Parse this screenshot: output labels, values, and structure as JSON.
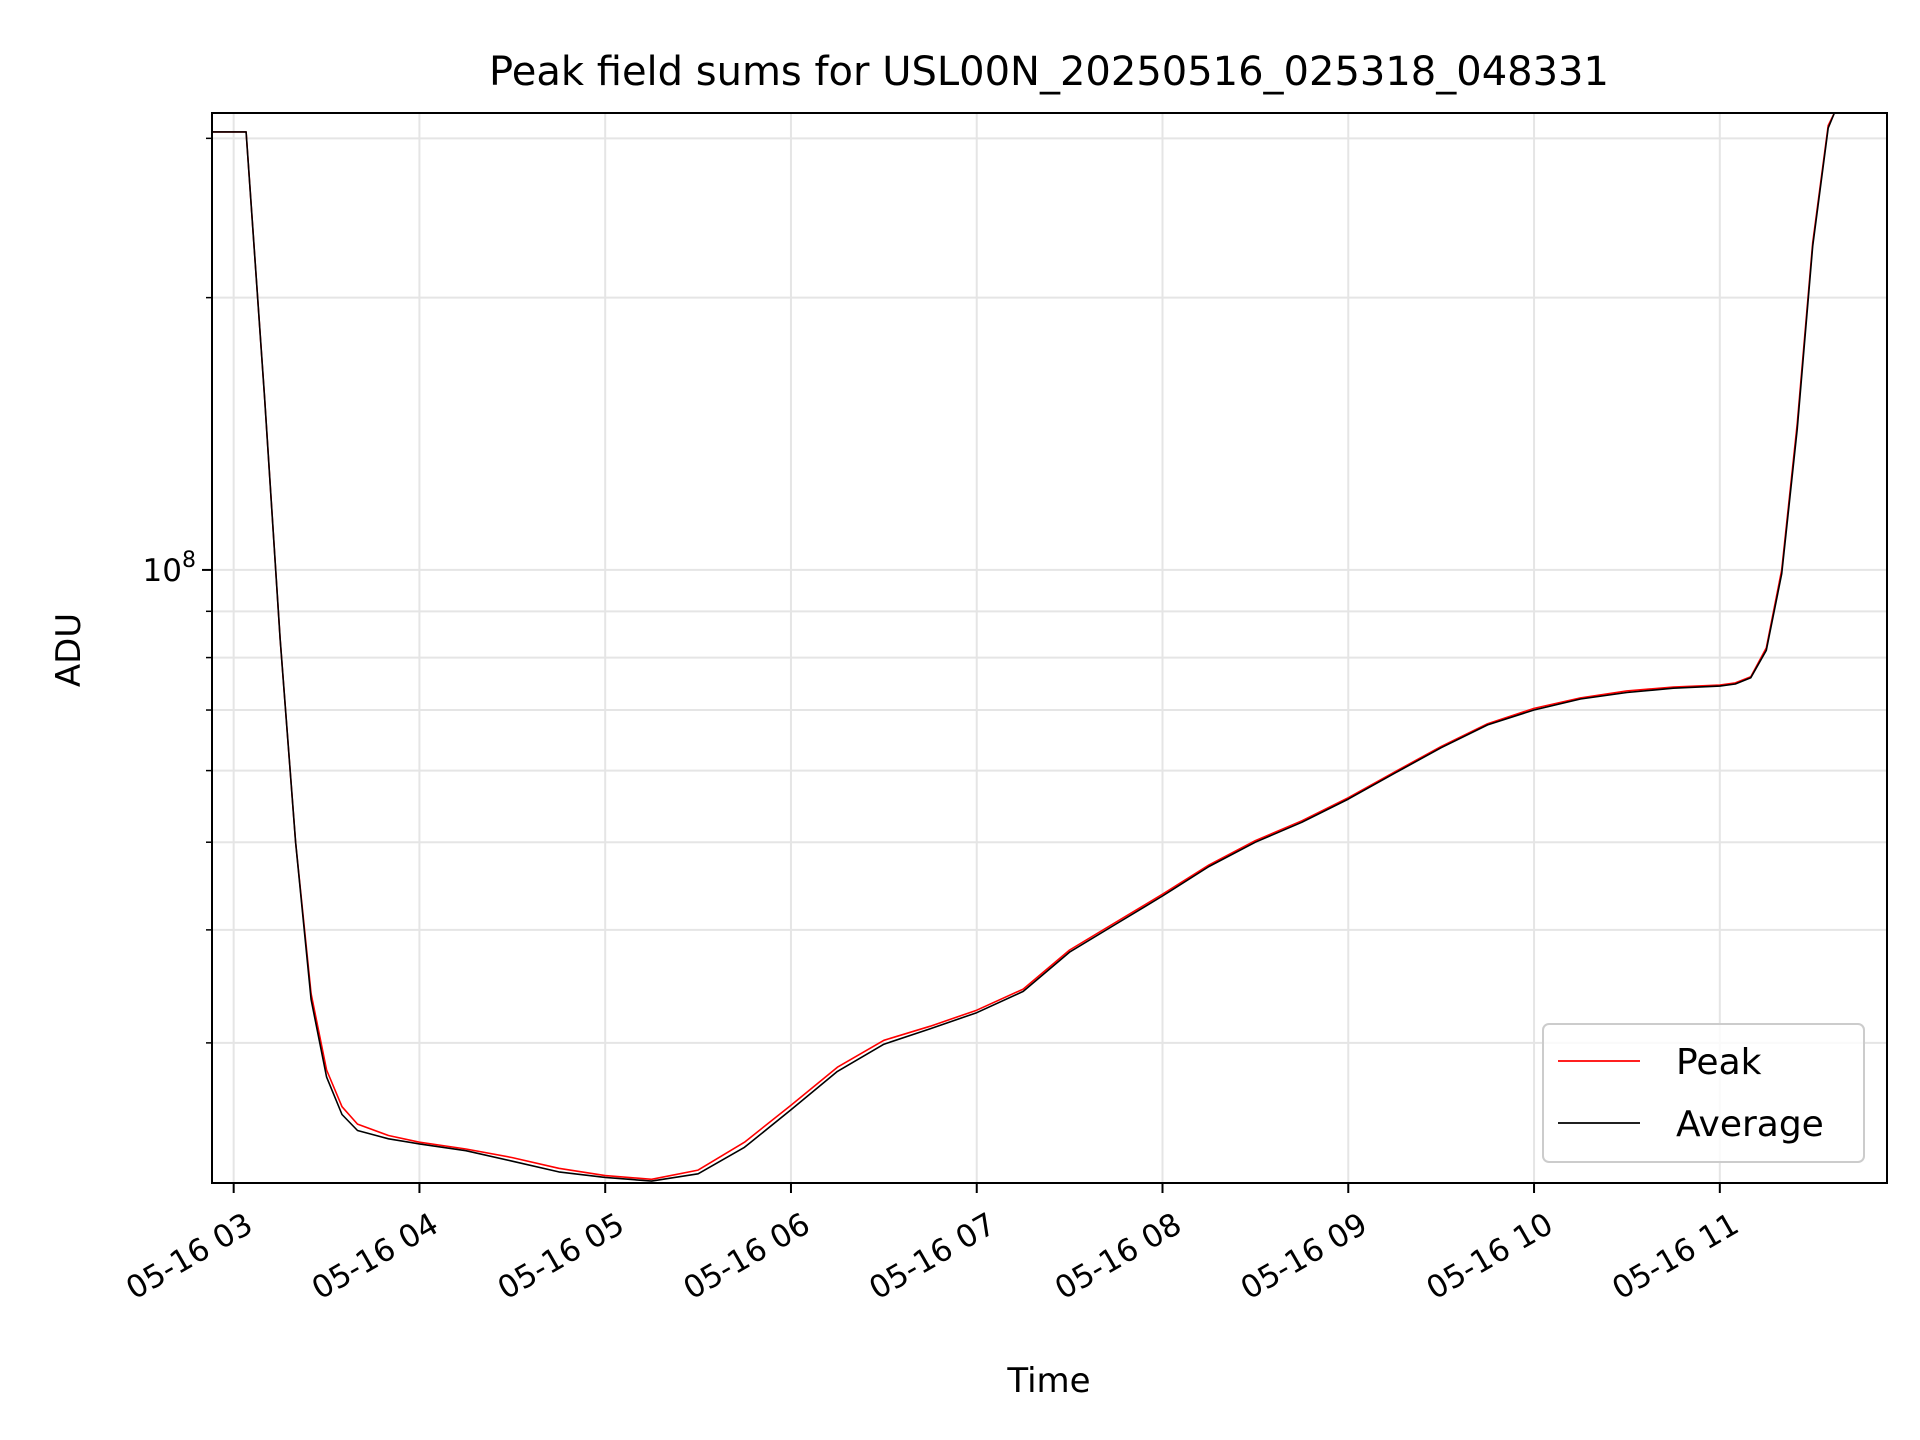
{
  "chart_data": {
    "type": "line",
    "title": "Peak field sums for USL00N_20250516_025318_048331",
    "xlabel": "Time",
    "ylabel": "ADU",
    "y_scale": "log",
    "ylim": [
      21000000.0,
      320000000.0
    ],
    "xlim": [
      "2025-05-16 02:53",
      "2025-05-16 11:54"
    ],
    "grid": true,
    "legend_position": "lower right",
    "x_ticks": [
      "05-16 03",
      "05-16 04",
      "05-16 05",
      "05-16 06",
      "05-16 07",
      "05-16 08",
      "05-16 09",
      "05-16 10",
      "05-16 11"
    ],
    "x_tick_times": [
      "2025-05-16 03:00",
      "2025-05-16 04:00",
      "2025-05-16 05:00",
      "2025-05-16 06:00",
      "2025-05-16 07:00",
      "2025-05-16 08:00",
      "2025-05-16 09:00",
      "2025-05-16 10:00",
      "2025-05-16 11:00"
    ],
    "y_tick_major": {
      "base": "10",
      "exponent": "8",
      "value": 100000000.0
    },
    "series": [
      {
        "name": "Peak",
        "color": "#ff0000",
        "points": [
          [
            "2025-05-16 02:53",
            305000000.0
          ],
          [
            "2025-05-16 03:00",
            305000000.0
          ],
          [
            "2025-05-16 03:04",
            305000000.0
          ],
          [
            "2025-05-16 03:10",
            155000000.0
          ],
          [
            "2025-05-16 03:15",
            84000000.0
          ],
          [
            "2025-05-16 03:20",
            50000000.0
          ],
          [
            "2025-05-16 03:25",
            34000000.0
          ],
          [
            "2025-05-16 03:30",
            28000000.0
          ],
          [
            "2025-05-16 03:35",
            25500000.0
          ],
          [
            "2025-05-16 03:40",
            24400000.0
          ],
          [
            "2025-05-16 03:50",
            23700000.0
          ],
          [
            "2025-05-16 04:00",
            23300000.0
          ],
          [
            "2025-05-16 04:15",
            22900000.0
          ],
          [
            "2025-05-16 04:30",
            22400000.0
          ],
          [
            "2025-05-16 04:45",
            21800000.0
          ],
          [
            "2025-05-16 05:00",
            21400000.0
          ],
          [
            "2025-05-16 05:15",
            21200000.0
          ],
          [
            "2025-05-16 05:30",
            21700000.0
          ],
          [
            "2025-05-16 05:45",
            23300000.0
          ],
          [
            "2025-05-16 06:00",
            25600000.0
          ],
          [
            "2025-05-16 06:15",
            28200000.0
          ],
          [
            "2025-05-16 06:30",
            30200000.0
          ],
          [
            "2025-05-16 06:45",
            31300000.0
          ],
          [
            "2025-05-16 07:00",
            32600000.0
          ],
          [
            "2025-05-16 07:15",
            34400000.0
          ],
          [
            "2025-05-16 07:30",
            38000000.0
          ],
          [
            "2025-05-16 07:45",
            40800000.0
          ],
          [
            "2025-05-16 08:00",
            43800000.0
          ],
          [
            "2025-05-16 08:15",
            47200000.0
          ],
          [
            "2025-05-16 08:30",
            50200000.0
          ],
          [
            "2025-05-16 08:45",
            52800000.0
          ],
          [
            "2025-05-16 09:00",
            56000000.0
          ],
          [
            "2025-05-16 09:15",
            59800000.0
          ],
          [
            "2025-05-16 09:30",
            63800000.0
          ],
          [
            "2025-05-16 09:45",
            67600000.0
          ],
          [
            "2025-05-16 10:00",
            70300000.0
          ],
          [
            "2025-05-16 10:15",
            72200000.0
          ],
          [
            "2025-05-16 10:30",
            73500000.0
          ],
          [
            "2025-05-16 10:45",
            74200000.0
          ],
          [
            "2025-05-16 11:00",
            74600000.0
          ],
          [
            "2025-05-16 11:05",
            75000000.0
          ],
          [
            "2025-05-16 11:10",
            76200000.0
          ],
          [
            "2025-05-16 11:15",
            82000000.0
          ],
          [
            "2025-05-16 11:20",
            100000000.0
          ],
          [
            "2025-05-16 11:25",
            145000000.0
          ],
          [
            "2025-05-16 11:30",
            230000000.0
          ],
          [
            "2025-05-16 11:35",
            310000000.0
          ],
          [
            "2025-05-16 11:37",
            320000000.0
          ]
        ]
      },
      {
        "name": "Average",
        "color": "#000000",
        "points": [
          [
            "2025-05-16 02:53",
            305000000.0
          ],
          [
            "2025-05-16 03:00",
            305000000.0
          ],
          [
            "2025-05-16 03:04",
            305000000.0
          ],
          [
            "2025-05-16 03:10",
            155000000.0
          ],
          [
            "2025-05-16 03:15",
            84000000.0
          ],
          [
            "2025-05-16 03:20",
            50000000.0
          ],
          [
            "2025-05-16 03:25",
            33500000.0
          ],
          [
            "2025-05-16 03:30",
            27500000.0
          ],
          [
            "2025-05-16 03:35",
            25000000.0
          ],
          [
            "2025-05-16 03:40",
            24000000.0
          ],
          [
            "2025-05-16 03:50",
            23500000.0
          ],
          [
            "2025-05-16 04:00",
            23200000.0
          ],
          [
            "2025-05-16 04:15",
            22800000.0
          ],
          [
            "2025-05-16 04:30",
            22200000.0
          ],
          [
            "2025-05-16 04:45",
            21600000.0
          ],
          [
            "2025-05-16 05:00",
            21300000.0
          ],
          [
            "2025-05-16 05:15",
            21100000.0
          ],
          [
            "2025-05-16 05:30",
            21500000.0
          ],
          [
            "2025-05-16 05:45",
            23000000.0
          ],
          [
            "2025-05-16 06:00",
            25300000.0
          ],
          [
            "2025-05-16 06:15",
            27900000.0
          ],
          [
            "2025-05-16 06:30",
            29900000.0
          ],
          [
            "2025-05-16 06:45",
            31100000.0
          ],
          [
            "2025-05-16 07:00",
            32400000.0
          ],
          [
            "2025-05-16 07:15",
            34200000.0
          ],
          [
            "2025-05-16 07:30",
            37800000.0
          ],
          [
            "2025-05-16 07:45",
            40600000.0
          ],
          [
            "2025-05-16 08:00",
            43600000.0
          ],
          [
            "2025-05-16 08:15",
            47000000.0
          ],
          [
            "2025-05-16 08:30",
            50000000.0
          ],
          [
            "2025-05-16 08:45",
            52600000.0
          ],
          [
            "2025-05-16 09:00",
            55800000.0
          ],
          [
            "2025-05-16 09:15",
            59600000.0
          ],
          [
            "2025-05-16 09:30",
            63600000.0
          ],
          [
            "2025-05-16 09:45",
            67400000.0
          ],
          [
            "2025-05-16 10:00",
            70000000.0
          ],
          [
            "2025-05-16 10:15",
            72000000.0
          ],
          [
            "2025-05-16 10:30",
            73200000.0
          ],
          [
            "2025-05-16 10:45",
            74000000.0
          ],
          [
            "2025-05-16 11:00",
            74400000.0
          ],
          [
            "2025-05-16 11:05",
            74800000.0
          ],
          [
            "2025-05-16 11:10",
            76000000.0
          ],
          [
            "2025-05-16 11:15",
            81500000.0
          ],
          [
            "2025-05-16 11:20",
            99000000.0
          ],
          [
            "2025-05-16 11:25",
            143000000.0
          ],
          [
            "2025-05-16 11:30",
            228000000.0
          ],
          [
            "2025-05-16 11:35",
            308000000.0
          ],
          [
            "2025-05-16 11:37",
            320000000.0
          ]
        ]
      }
    ]
  }
}
